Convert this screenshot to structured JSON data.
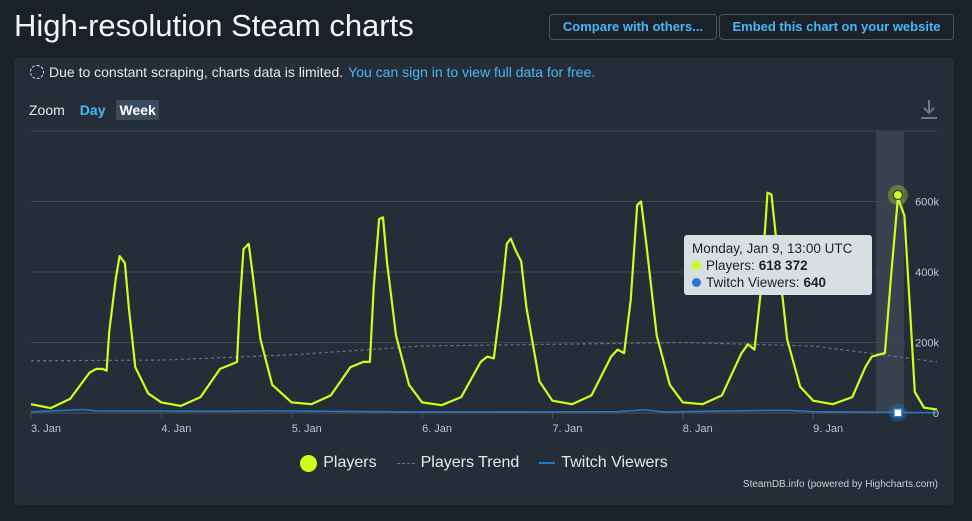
{
  "header": {
    "title": "High-resolution Steam charts",
    "compare_label": "Compare with others...",
    "embed_label": "Embed this chart on your website"
  },
  "notice": {
    "text": "Due to constant scraping, charts data is limited.",
    "link": "You can sign in to view full data for free."
  },
  "zoom": {
    "label": "Zoom",
    "options": [
      "Day",
      "Week"
    ],
    "active": "Week"
  },
  "colors": {
    "players": "#ccff1e",
    "trend": "#6b7581",
    "twitch": "#2778c8",
    "accent": "#4ab7f5"
  },
  "icons": [
    "download-icon",
    "loading-spinner-icon"
  ],
  "tooltip": {
    "date": "Monday, Jan 9, 13:00 UTC",
    "players_label": "Players:",
    "players_value": "618 372",
    "twitch_label": "Twitch Viewers:",
    "twitch_value": "640"
  },
  "credit": "SteamDB.info (powered by Highcharts.com)",
  "chart_data": {
    "type": "line",
    "title": "",
    "x_tick_labels": [
      "3. Jan",
      "4. Jan",
      "5. Jan",
      "6. Jan",
      "7. Jan",
      "8. Jan",
      "9. Jan"
    ],
    "y_tick_labels": [
      "0",
      "200k",
      "400k",
      "600k"
    ],
    "ylim": [
      0,
      800000
    ],
    "y_axis_side": "right",
    "grid": true,
    "legend_position": "bottom",
    "x_unit": "days since Jan 3 00:00 UTC",
    "xlim": [
      0,
      6.95
    ],
    "series": [
      {
        "name": "Players",
        "points": [
          [
            0,
            25000
          ],
          [
            0.15,
            14000
          ],
          [
            0.3,
            40000
          ],
          [
            0.45,
            115000
          ],
          [
            0.5,
            125000
          ],
          [
            0.55,
            125000
          ],
          [
            0.58,
            120000
          ],
          [
            0.6,
            230000
          ],
          [
            0.65,
            380000
          ],
          [
            0.68,
            445000
          ],
          [
            0.72,
            425000
          ],
          [
            0.75,
            300000
          ],
          [
            0.8,
            130000
          ],
          [
            0.9,
            55000
          ],
          [
            1.0,
            30000
          ],
          [
            1.15,
            20000
          ],
          [
            1.3,
            45000
          ],
          [
            1.45,
            125000
          ],
          [
            1.55,
            140000
          ],
          [
            1.58,
            145000
          ],
          [
            1.6,
            300000
          ],
          [
            1.63,
            465000
          ],
          [
            1.67,
            480000
          ],
          [
            1.7,
            395000
          ],
          [
            1.76,
            210000
          ],
          [
            1.85,
            80000
          ],
          [
            2.0,
            30000
          ],
          [
            2.15,
            25000
          ],
          [
            2.3,
            50000
          ],
          [
            2.45,
            130000
          ],
          [
            2.55,
            145000
          ],
          [
            2.6,
            145000
          ],
          [
            2.63,
            360000
          ],
          [
            2.67,
            550000
          ],
          [
            2.7,
            555000
          ],
          [
            2.73,
            430000
          ],
          [
            2.8,
            220000
          ],
          [
            2.9,
            80000
          ],
          [
            3.0,
            30000
          ],
          [
            3.15,
            22000
          ],
          [
            3.3,
            45000
          ],
          [
            3.45,
            145000
          ],
          [
            3.5,
            160000
          ],
          [
            3.55,
            155000
          ],
          [
            3.6,
            300000
          ],
          [
            3.65,
            480000
          ],
          [
            3.68,
            495000
          ],
          [
            3.72,
            460000
          ],
          [
            3.76,
            430000
          ],
          [
            3.8,
            300000
          ],
          [
            3.9,
            90000
          ],
          [
            4.0,
            35000
          ],
          [
            4.15,
            25000
          ],
          [
            4.3,
            50000
          ],
          [
            4.45,
            160000
          ],
          [
            4.5,
            180000
          ],
          [
            4.55,
            170000
          ],
          [
            4.6,
            320000
          ],
          [
            4.65,
            590000
          ],
          [
            4.68,
            600000
          ],
          [
            4.72,
            480000
          ],
          [
            4.8,
            220000
          ],
          [
            4.9,
            80000
          ],
          [
            5.0,
            30000
          ],
          [
            5.15,
            25000
          ],
          [
            5.3,
            50000
          ],
          [
            5.45,
            170000
          ],
          [
            5.5,
            195000
          ],
          [
            5.55,
            180000
          ],
          [
            5.6,
            350000
          ],
          [
            5.65,
            625000
          ],
          [
            5.68,
            620000
          ],
          [
            5.72,
            480000
          ],
          [
            5.8,
            210000
          ],
          [
            5.9,
            75000
          ],
          [
            6.0,
            35000
          ],
          [
            6.15,
            25000
          ],
          [
            6.3,
            45000
          ],
          [
            6.4,
            130000
          ],
          [
            6.45,
            160000
          ],
          [
            6.55,
            170000
          ],
          [
            6.6,
            400000
          ],
          [
            6.65,
            610000
          ],
          [
            6.7,
            560000
          ],
          [
            6.75,
            250000
          ],
          [
            6.78,
            60000
          ],
          [
            6.85,
            15000
          ],
          [
            6.95,
            10000
          ]
        ]
      },
      {
        "name": "Players Trend",
        "points": [
          [
            0,
            148000
          ],
          [
            1,
            150000
          ],
          [
            2,
            165000
          ],
          [
            3,
            190000
          ],
          [
            4,
            195000
          ],
          [
            5,
            200000
          ],
          [
            6,
            190000
          ],
          [
            6.95,
            145000
          ]
        ]
      },
      {
        "name": "Twitch Viewers",
        "points": [
          [
            0,
            3000
          ],
          [
            0.4,
            10000
          ],
          [
            0.5,
            6000
          ],
          [
            1.5,
            5000
          ],
          [
            1.8,
            6000
          ],
          [
            3.0,
            3000
          ],
          [
            4.5,
            4000
          ],
          [
            4.7,
            9000
          ],
          [
            4.85,
            3000
          ],
          [
            5.8,
            8000
          ],
          [
            6.0,
            4000
          ],
          [
            6.95,
            1000
          ]
        ]
      }
    ],
    "highlighted_point": {
      "x": 6.65,
      "players": 618372,
      "twitch_viewers": 640
    }
  }
}
